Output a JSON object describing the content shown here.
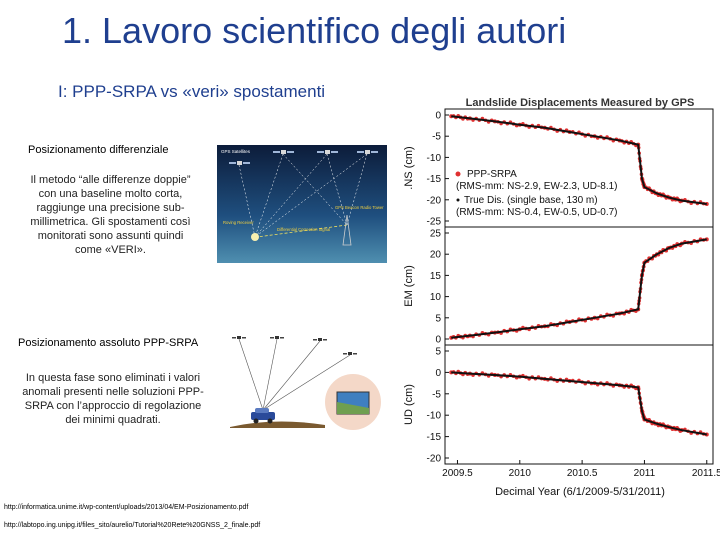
{
  "slide": {
    "title": "1. Lavoro scientifico degli autori",
    "subtitle": "I:  PPP-SRPA vs «veri» spostamenti"
  },
  "differential": {
    "heading": "Posizionamento differenziale",
    "text_lines": [
      "Il metodo “alle differenze doppie”",
      "con una baseline molto corta,",
      "raggiunge una precisione sub-",
      "millimetrica. Gli spostamenti così",
      "monitorati sono assunti quindi",
      "come «VERI»."
    ],
    "image_labels": {
      "satellites": "GPS Satellites",
      "roving": "Roving Receiver",
      "correction": "Differential Correction Signal",
      "beacon": "GPS Beacon Radio Tower"
    }
  },
  "ppp": {
    "heading": "Posizionamento assoluto PPP-SRPA",
    "text_lines": [
      "In questa fase sono eliminati i valori",
      "anomali presenti nelle soluzioni PPP-",
      "SRPA  con l’approccio di regolazione",
      "dei minimi quadrati."
    ]
  },
  "links": [
    "http://informatica.unime.it/wp-content/uploads/2013/04/EM-Posizionamento.pdf",
    "http://labtopo.ing.unipg.it/files_sito/aurelio/Tutorial%20Rete%20GNSS_2_finale.pdf"
  ],
  "colors": {
    "title": "#1f3f8f",
    "ppp_series": "#e03030",
    "true_series": "#111111",
    "sky_top": "#0c1c3a",
    "sky_bottom": "#2f6fa0"
  },
  "chart_data": {
    "type": "scatter",
    "title": "Landslide Displacements Measured by GPS",
    "xlabel": "Decimal Year (6/1/2009-5/31/2011)",
    "xlim": [
      2009.4,
      2011.55
    ],
    "xticks": [
      2009.5,
      2010,
      2010.5,
      2011,
      2011.5
    ],
    "panels": [
      {
        "ylabel": ".NS (cm)",
        "ylim": [
          -25,
          0
        ],
        "yticks": [
          0,
          -5,
          -10,
          -15,
          -20,
          -25
        ],
        "legend": {
          "placement": "left",
          "entries": [
            {
              "series": "PPP-SRPA",
              "sub": "(RMS-mm: NS-2.9, EW-2.3, UD-8.1)"
            },
            {
              "series": "True Dis. (single base, 130 m)",
              "sub": "(RMS-mm: NS-0.4, EW-0.5, UD-0.7)"
            }
          ]
        },
        "series": [
          {
            "name": "PPP-SRPA",
            "x": [
              2009.45,
              2009.6,
              2009.8,
              2010.0,
              2010.2,
              2010.4,
              2010.6,
              2010.8,
              2010.95,
              2010.98,
              2011.0,
              2011.1,
              2011.2,
              2011.3,
              2011.5
            ],
            "y": [
              -0.3,
              -0.8,
              -1.5,
              -2.3,
              -3.0,
              -4.0,
              -5.0,
              -6.0,
              -7.0,
              -15.0,
              -17.0,
              -18.5,
              -19.5,
              -20.2,
              -21.0
            ]
          },
          {
            "name": "True Dis. (single base, 130 m)",
            "x": [
              2009.45,
              2009.6,
              2009.8,
              2010.0,
              2010.2,
              2010.4,
              2010.6,
              2010.8,
              2010.95,
              2010.98,
              2011.0,
              2011.1,
              2011.2,
              2011.3,
              2011.5
            ],
            "y": [
              -0.3,
              -0.8,
              -1.5,
              -2.3,
              -3.0,
              -4.0,
              -5.0,
              -6.0,
              -7.0,
              -15.0,
              -17.0,
              -18.5,
              -19.5,
              -20.2,
              -21.0
            ]
          }
        ]
      },
      {
        "ylabel": "EM (cm)",
        "ylim": [
          0,
          25
        ],
        "yticks": [
          25,
          20,
          15,
          10,
          5,
          0
        ],
        "series": [
          {
            "name": "PPP-SRPA",
            "x": [
              2009.45,
              2009.6,
              2009.8,
              2010.0,
              2010.2,
              2010.4,
              2010.6,
              2010.8,
              2010.95,
              2010.98,
              2011.0,
              2011.1,
              2011.2,
              2011.3,
              2011.5
            ],
            "y": [
              0.3,
              0.8,
              1.5,
              2.3,
              3.0,
              4.0,
              5.0,
              6.0,
              7.0,
              15.0,
              18.0,
              20.0,
              21.5,
              22.5,
              23.5
            ]
          },
          {
            "name": "True Dis. (single base, 130 m)",
            "x": [
              2009.45,
              2009.6,
              2009.8,
              2010.0,
              2010.2,
              2010.4,
              2010.6,
              2010.8,
              2010.95,
              2010.98,
              2011.0,
              2011.1,
              2011.2,
              2011.3,
              2011.5
            ],
            "y": [
              0.3,
              0.8,
              1.5,
              2.3,
              3.0,
              4.0,
              5.0,
              6.0,
              7.0,
              15.0,
              18.0,
              20.0,
              21.5,
              22.5,
              23.5
            ]
          }
        ]
      },
      {
        "ylabel": "UD (cm)",
        "ylim": [
          -20,
          5
        ],
        "yticks": [
          5,
          0,
          -5,
          -10,
          -15,
          -20
        ],
        "series": [
          {
            "name": "PPP-SRPA",
            "x": [
              2009.45,
              2009.6,
              2009.8,
              2010.0,
              2010.2,
              2010.4,
              2010.6,
              2010.8,
              2010.95,
              2010.98,
              2011.0,
              2011.1,
              2011.2,
              2011.3,
              2011.5
            ],
            "y": [
              0.0,
              -0.3,
              -0.6,
              -1.0,
              -1.5,
              -2.0,
              -2.5,
              -3.0,
              -3.5,
              -9.0,
              -11.0,
              -12.0,
              -12.8,
              -13.5,
              -14.5
            ]
          },
          {
            "name": "True Dis. (single base, 130 m)",
            "x": [
              2009.45,
              2009.6,
              2009.8,
              2010.0,
              2010.2,
              2010.4,
              2010.6,
              2010.8,
              2010.95,
              2010.98,
              2011.0,
              2011.1,
              2011.2,
              2011.3,
              2011.5
            ],
            "y": [
              0.0,
              -0.3,
              -0.6,
              -1.0,
              -1.5,
              -2.0,
              -2.5,
              -3.0,
              -3.5,
              -9.0,
              -11.0,
              -12.0,
              -12.8,
              -13.5,
              -14.5
            ]
          }
        ]
      }
    ]
  }
}
